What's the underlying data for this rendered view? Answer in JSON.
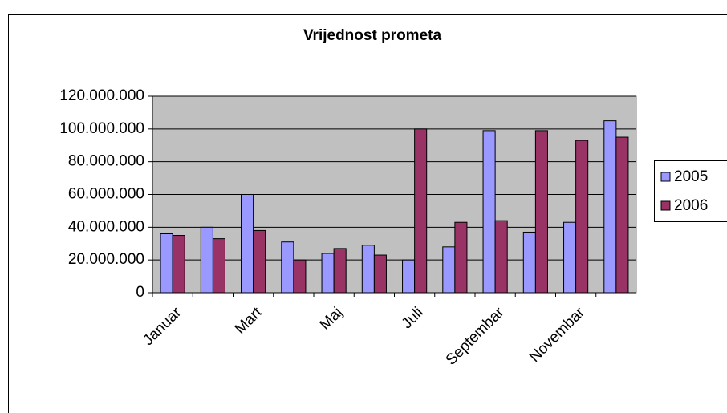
{
  "chart_data": {
    "type": "bar",
    "title": "Vrijednost prometa",
    "categories": [
      "Januar",
      null,
      "Mart",
      null,
      "Maj",
      null,
      "Juli",
      null,
      "Septembar",
      null,
      "Novembar",
      null
    ],
    "series": [
      {
        "name": "2005",
        "color": "#9999ff",
        "values": [
          36000000,
          40000000,
          60000000,
          31000000,
          24000000,
          29000000,
          20000000,
          28000000,
          99000000,
          37000000,
          43000000,
          105000000
        ]
      },
      {
        "name": "2006",
        "color": "#993366",
        "values": [
          35000000,
          33000000,
          38000000,
          20000000,
          27000000,
          23000000,
          100000000,
          43000000,
          44000000,
          99000000,
          93000000,
          95000000
        ]
      }
    ],
    "ylim": [
      0,
      120000000
    ],
    "yticks": [
      0,
      {
        "value": 20000000,
        "label": "20.000.000"
      },
      {
        "value": 40000000,
        "label": "40.000.000"
      },
      {
        "value": 60000000,
        "label": "60.000.000"
      },
      {
        "value": 80000000,
        "label": "80.000.000"
      },
      {
        "value": 100000000,
        "label": "100.000.000"
      },
      {
        "value": 120000000,
        "label": "120.000.000"
      }
    ],
    "grid": true,
    "legend": "right"
  }
}
